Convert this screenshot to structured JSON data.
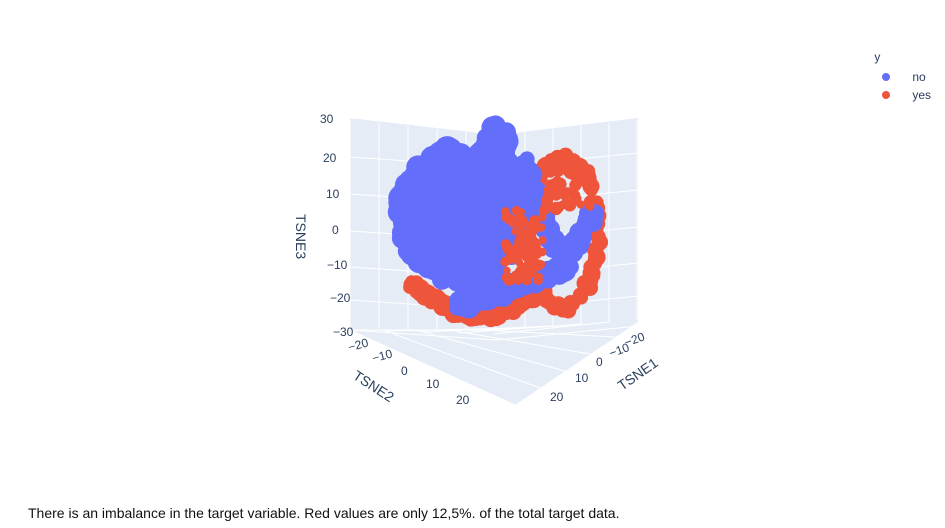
{
  "legend": {
    "title": "y",
    "items": [
      {
        "label": "no",
        "color": "#636efa"
      },
      {
        "label": "yes",
        "color": "#ef553b"
      }
    ]
  },
  "caption": "There is an imbalance in the target variable. Red values are only 12,5%. of the total target data.",
  "chart_data": {
    "type": "scatter",
    "dimensions": 3,
    "xlabel": "TSNE1",
    "ylabel": "TSNE2",
    "zlabel": "TSNE3",
    "x_ticks": [
      "−20",
      "−10",
      "0",
      "10",
      "20"
    ],
    "y_ticks": [
      "−20",
      "−10",
      "0",
      "10",
      "20"
    ],
    "z_ticks": [
      "−30",
      "−20",
      "−10",
      "0",
      "10",
      "20",
      "30"
    ],
    "xlim": [
      -25,
      25
    ],
    "ylim": [
      -25,
      25
    ],
    "zlim": [
      -30,
      30
    ],
    "legend_title": "y",
    "legend_position": "top-right",
    "background_color": "#e5ecf6",
    "series": [
      {
        "name": "no",
        "color": "#636efa",
        "share_percent": 87.5
      },
      {
        "name": "yes",
        "color": "#ef553b",
        "share_percent": 12.5
      }
    ]
  }
}
